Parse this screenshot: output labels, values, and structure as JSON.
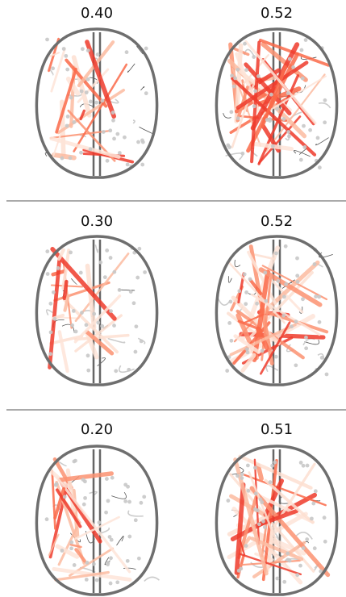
{
  "panels": [
    {
      "title": "0.40"
    },
    {
      "title": "0.52"
    },
    {
      "title": "0.30"
    },
    {
      "title": "0.52"
    },
    {
      "title": "0.20"
    },
    {
      "title": "0.51"
    }
  ]
}
